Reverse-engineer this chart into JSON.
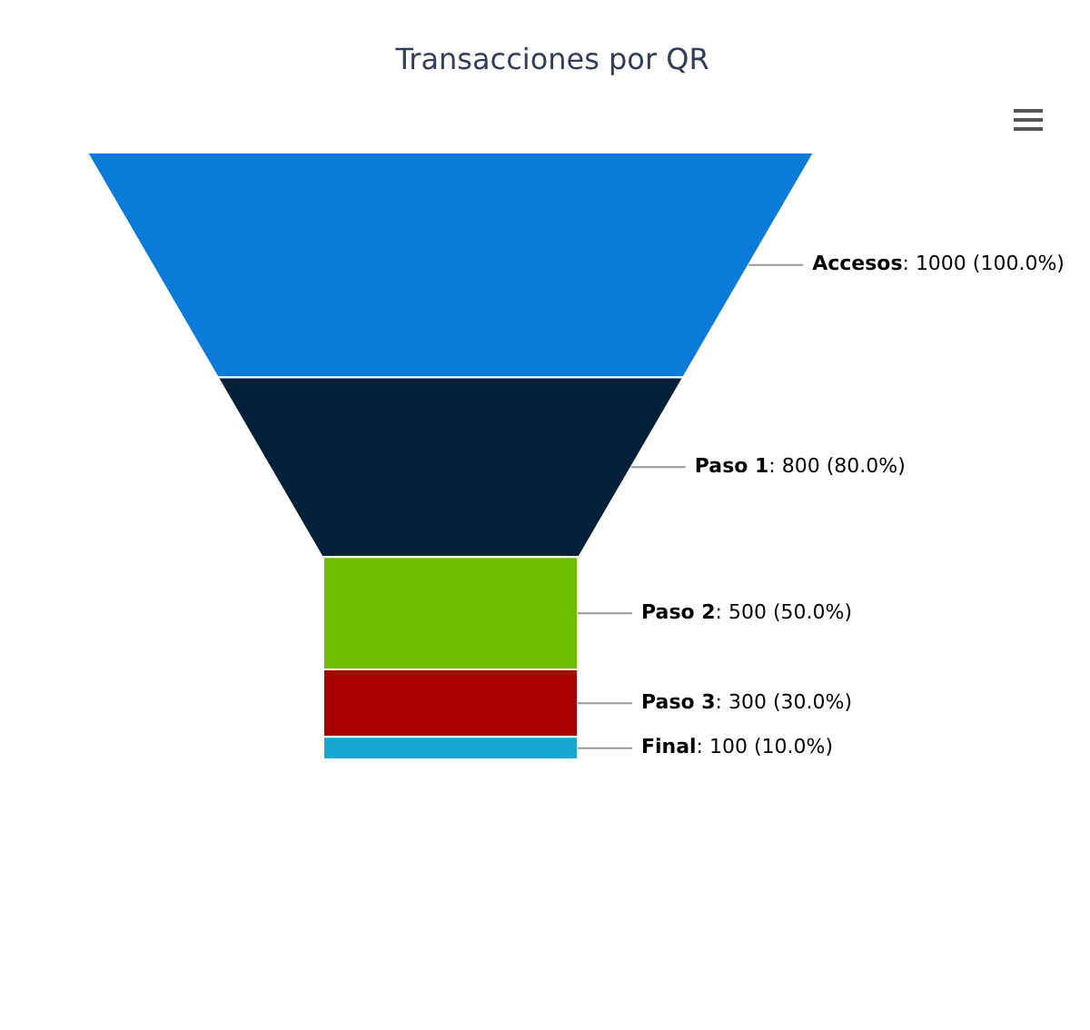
{
  "chart_data": {
    "type": "other",
    "title": "Transacciones por QR",
    "categories": [
      "Accesos",
      "Paso 1",
      "Paso 2",
      "Paso 3",
      "Final"
    ],
    "values": [
      1000,
      800,
      500,
      300,
      100
    ],
    "value_labels": [
      ": 1000 (100.0%)",
      ": 800 (80.0%)",
      ": 500 (50.0%)",
      ": 300 (30.0%)",
      ": 100 (10.0%)"
    ],
    "colors": [
      "#0a7bd9",
      "#03203a",
      "#6fbf00",
      "#a80000",
      "#1aa6d2"
    ]
  }
}
